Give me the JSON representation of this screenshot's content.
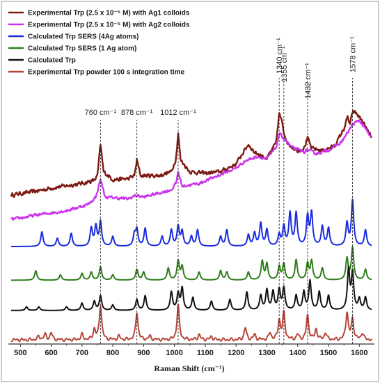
{
  "chart_data": {
    "type": "line",
    "xlabel": "Raman Shift (cm⁻¹)",
    "xlim": [
      470,
      1640
    ],
    "xticks": [
      500,
      600,
      700,
      800,
      900,
      1000,
      1100,
      1200,
      1300,
      1400,
      1500,
      1600
    ],
    "legend_position": "top-left",
    "grid": false,
    "peak_labels": [
      {
        "x": 760,
        "text": "760 cm⁻¹"
      },
      {
        "x": 878,
        "text": "878 cm⁻¹"
      },
      {
        "x": 1012,
        "text": "1012 cm⁻¹"
      },
      {
        "x": 1340,
        "text": "1340 cm⁻¹"
      },
      {
        "x": 1355,
        "text": "1355 cm⁻¹"
      },
      {
        "x": 1432,
        "text": "1432 cm⁻¹"
      },
      {
        "x": 1578,
        "text": "1578 cm⁻¹"
      }
    ],
    "series": [
      {
        "name": "Experimental Trp (2.5 x 10⁻⁵ M) with Ag1 colloids",
        "color": "#7b1a12",
        "noise": 0.035,
        "values": [
          [
            470,
            0.15
          ],
          [
            500,
            0.17
          ],
          [
            550,
            0.2
          ],
          [
            600,
            0.24
          ],
          [
            650,
            0.27
          ],
          [
            700,
            0.3
          ],
          [
            740,
            0.34
          ],
          [
            750,
            0.4
          ],
          [
            760,
            0.8
          ],
          [
            770,
            0.45
          ],
          [
            800,
            0.35
          ],
          [
            850,
            0.36
          ],
          [
            870,
            0.4
          ],
          [
            878,
            0.6
          ],
          [
            890,
            0.4
          ],
          [
            950,
            0.4
          ],
          [
            990,
            0.45
          ],
          [
            1005,
            0.62
          ],
          [
            1012,
            0.95
          ],
          [
            1020,
            0.6
          ],
          [
            1050,
            0.45
          ],
          [
            1100,
            0.43
          ],
          [
            1150,
            0.45
          ],
          [
            1200,
            0.55
          ],
          [
            1220,
            0.68
          ],
          [
            1240,
            0.8
          ],
          [
            1260,
            0.7
          ],
          [
            1300,
            0.62
          ],
          [
            1330,
            0.82
          ],
          [
            1340,
            1.2
          ],
          [
            1348,
            1.1
          ],
          [
            1355,
            0.95
          ],
          [
            1370,
            0.8
          ],
          [
            1400,
            0.72
          ],
          [
            1420,
            0.75
          ],
          [
            1432,
            0.88
          ],
          [
            1445,
            0.75
          ],
          [
            1480,
            0.72
          ],
          [
            1520,
            0.78
          ],
          [
            1550,
            1.0
          ],
          [
            1562,
            1.15
          ],
          [
            1570,
            1.05
          ],
          [
            1578,
            1.22
          ],
          [
            1590,
            1.2
          ],
          [
            1610,
            1.1
          ],
          [
            1630,
            0.95
          ],
          [
            1640,
            0.9
          ]
        ]
      },
      {
        "name": "Experimental Trp (2.5 x 10⁻⁵ M) with Ag2 colloids",
        "color": "#cc33ee",
        "noise": 0.022,
        "values": [
          [
            470,
            0.05
          ],
          [
            550,
            0.1
          ],
          [
            650,
            0.15
          ],
          [
            720,
            0.22
          ],
          [
            745,
            0.3
          ],
          [
            760,
            0.5
          ],
          [
            775,
            0.3
          ],
          [
            850,
            0.28
          ],
          [
            875,
            0.32
          ],
          [
            900,
            0.3
          ],
          [
            990,
            0.38
          ],
          [
            1005,
            0.45
          ],
          [
            1012,
            0.58
          ],
          [
            1025,
            0.42
          ],
          [
            1080,
            0.45
          ],
          [
            1150,
            0.55
          ],
          [
            1200,
            0.62
          ],
          [
            1230,
            0.7
          ],
          [
            1270,
            0.75
          ],
          [
            1300,
            0.72
          ],
          [
            1330,
            0.85
          ],
          [
            1340,
            1.0
          ],
          [
            1355,
            0.95
          ],
          [
            1380,
            0.85
          ],
          [
            1420,
            0.8
          ],
          [
            1432,
            0.82
          ],
          [
            1460,
            0.78
          ],
          [
            1500,
            0.82
          ],
          [
            1540,
            0.9
          ],
          [
            1560,
            1.0
          ],
          [
            1578,
            1.1
          ],
          [
            1600,
            1.15
          ],
          [
            1620,
            1.05
          ],
          [
            1640,
            0.95
          ]
        ]
      },
      {
        "name": "Calculated Trp SERS (4Ag atoms)",
        "color": "#1a2be0",
        "noise": 0,
        "values": [
          [
            570,
            0.45
          ],
          [
            620,
            0.25
          ],
          [
            665,
            0.4
          ],
          [
            730,
            0.55
          ],
          [
            745,
            0.6
          ],
          [
            760,
            0.75
          ],
          [
            800,
            0.3
          ],
          [
            870,
            0.35
          ],
          [
            878,
            0.5
          ],
          [
            905,
            0.55
          ],
          [
            960,
            0.3
          ],
          [
            990,
            0.5
          ],
          [
            1012,
            0.6
          ],
          [
            1025,
            0.45
          ],
          [
            1055,
            0.3
          ],
          [
            1075,
            0.5
          ],
          [
            1150,
            0.3
          ],
          [
            1170,
            0.5
          ],
          [
            1240,
            0.35
          ],
          [
            1260,
            0.4
          ],
          [
            1280,
            0.7
          ],
          [
            1300,
            0.5
          ],
          [
            1340,
            0.35
          ],
          [
            1355,
            0.6
          ],
          [
            1375,
            1.0
          ],
          [
            1395,
            1.0
          ],
          [
            1432,
            0.9
          ],
          [
            1445,
            1.0
          ],
          [
            1480,
            0.6
          ],
          [
            1500,
            0.55
          ],
          [
            1560,
            0.7
          ],
          [
            1578,
            1.4
          ],
          [
            1620,
            0.5
          ]
        ]
      },
      {
        "name": "Calculated Trp SERS (1 Ag atom)",
        "color": "#2e7d1a",
        "noise": 0,
        "values": [
          [
            550,
            0.35
          ],
          [
            630,
            0.2
          ],
          [
            700,
            0.25
          ],
          [
            730,
            0.3
          ],
          [
            760,
            0.5
          ],
          [
            800,
            0.2
          ],
          [
            878,
            0.4
          ],
          [
            900,
            0.3
          ],
          [
            980,
            0.45
          ],
          [
            1012,
            0.7
          ],
          [
            1025,
            0.5
          ],
          [
            1080,
            0.3
          ],
          [
            1150,
            0.35
          ],
          [
            1170,
            0.3
          ],
          [
            1240,
            0.3
          ],
          [
            1285,
            0.7
          ],
          [
            1300,
            0.6
          ],
          [
            1340,
            0.5
          ],
          [
            1355,
            0.6
          ],
          [
            1395,
            0.75
          ],
          [
            1432,
            0.6
          ],
          [
            1445,
            0.7
          ],
          [
            1480,
            0.45
          ],
          [
            1560,
            0.8
          ],
          [
            1578,
            1.2
          ],
          [
            1620,
            0.4
          ]
        ]
      },
      {
        "name": "Calculated Trp",
        "color": "#111111",
        "noise": 0,
        "values": [
          [
            520,
            0.1
          ],
          [
            560,
            0.1
          ],
          [
            650,
            0.1
          ],
          [
            700,
            0.2
          ],
          [
            740,
            0.25
          ],
          [
            760,
            0.4
          ],
          [
            800,
            0.15
          ],
          [
            878,
            0.3
          ],
          [
            905,
            0.4
          ],
          [
            990,
            0.5
          ],
          [
            1012,
            0.45
          ],
          [
            1025,
            0.6
          ],
          [
            1060,
            0.35
          ],
          [
            1120,
            0.25
          ],
          [
            1180,
            0.3
          ],
          [
            1235,
            0.5
          ],
          [
            1280,
            0.4
          ],
          [
            1300,
            0.55
          ],
          [
            1320,
            0.5
          ],
          [
            1340,
            0.55
          ],
          [
            1355,
            0.6
          ],
          [
            1395,
            0.4
          ],
          [
            1420,
            0.5
          ],
          [
            1440,
            0.8
          ],
          [
            1470,
            0.5
          ],
          [
            1500,
            0.4
          ],
          [
            1565,
            1.1
          ],
          [
            1578,
            1.0
          ],
          [
            1600,
            0.3
          ],
          [
            1620,
            0.35
          ]
        ]
      },
      {
        "name": "Experimental Trp powder 100 s integration time",
        "color": "#b5453a",
        "noise": 0,
        "values": [
          [
            560,
            0.1
          ],
          [
            580,
            0.15
          ],
          [
            600,
            0.2
          ],
          [
            700,
            0.15
          ],
          [
            740,
            0.3
          ],
          [
            760,
            1.0
          ],
          [
            820,
            0.1
          ],
          [
            878,
            0.8
          ],
          [
            920,
            0.1
          ],
          [
            1012,
            1.0
          ],
          [
            1080,
            0.15
          ],
          [
            1120,
            0.1
          ],
          [
            1230,
            0.35
          ],
          [
            1260,
            0.15
          ],
          [
            1310,
            0.2
          ],
          [
            1340,
            0.55
          ],
          [
            1355,
            0.75
          ],
          [
            1400,
            0.15
          ],
          [
            1432,
            0.7
          ],
          [
            1460,
            0.3
          ],
          [
            1490,
            0.2
          ],
          [
            1560,
            0.8
          ],
          [
            1578,
            0.6
          ],
          [
            1610,
            0.2
          ]
        ]
      }
    ]
  }
}
